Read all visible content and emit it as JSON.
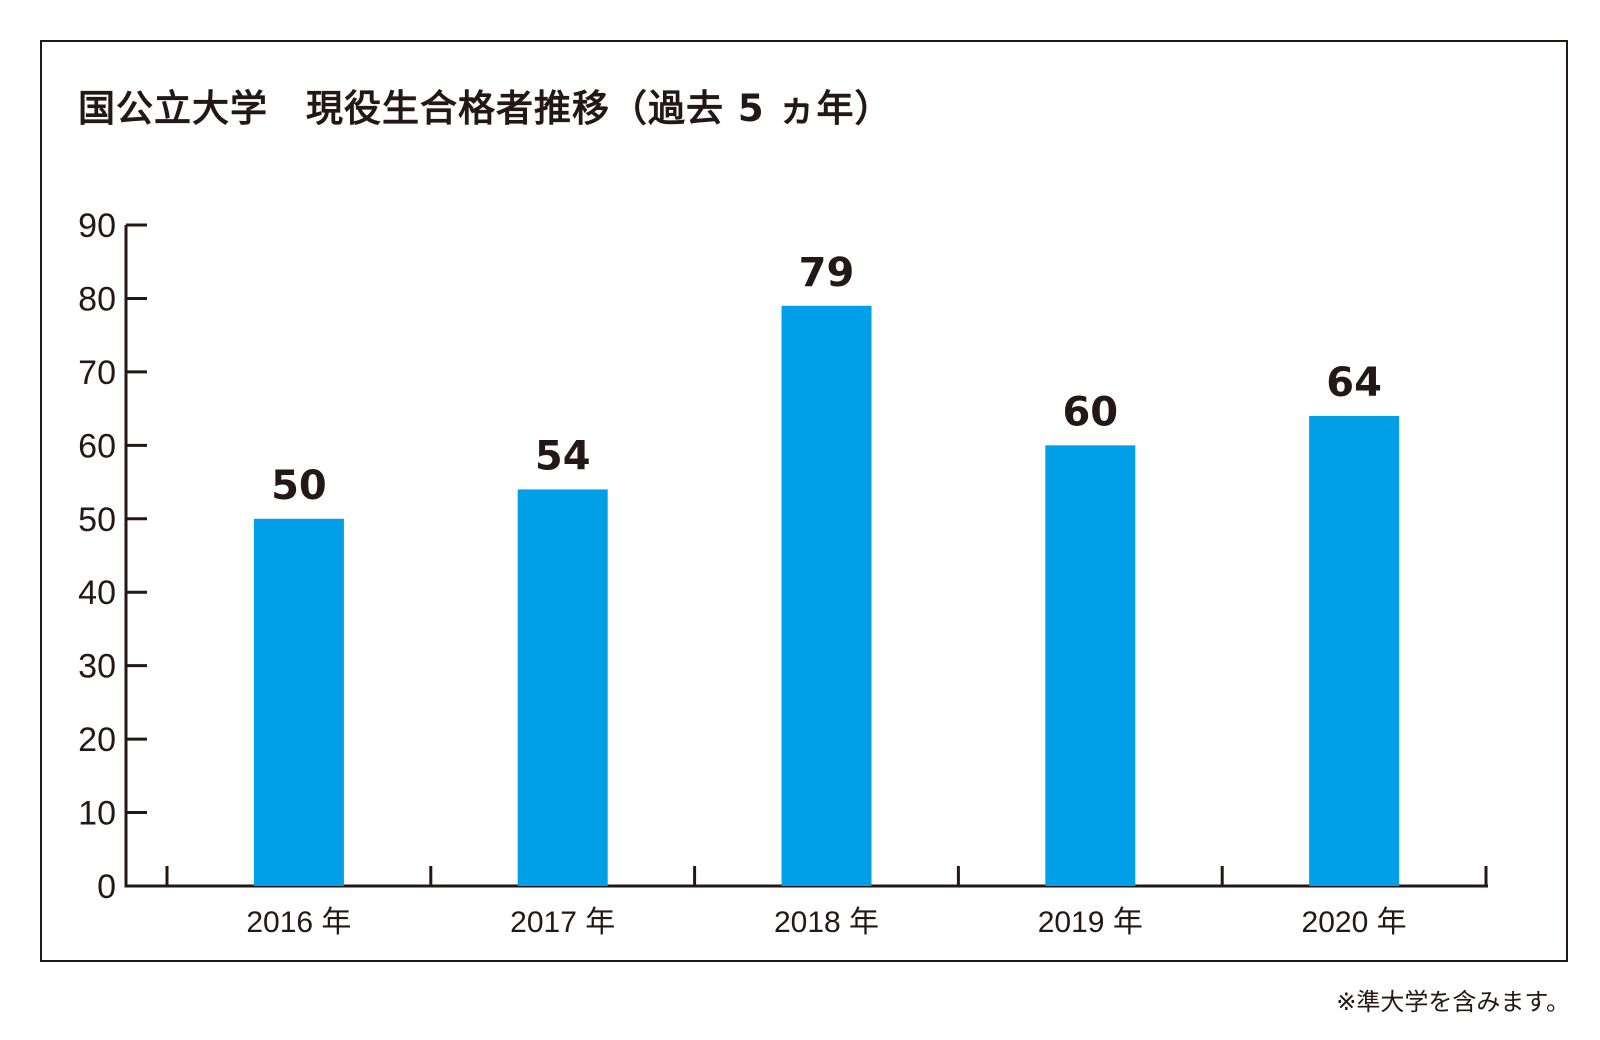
{
  "chart_data": {
    "type": "bar",
    "title": "国公立大学　現役生合格者推移（過去 5 ヵ年）",
    "categories": [
      "2016 年",
      "2017 年",
      "2018 年",
      "2019 年",
      "2020 年"
    ],
    "values": [
      50,
      54,
      79,
      60,
      64
    ],
    "data_labels": [
      "50",
      "54",
      "79",
      "60",
      "64"
    ],
    "xlabel": "",
    "ylabel": "",
    "ylim": [
      0,
      90
    ],
    "yticks": [
      "0",
      "10",
      "20",
      "30",
      "40",
      "50",
      "60",
      "70",
      "80",
      "90"
    ],
    "grid": false,
    "legend": "none",
    "bar_color": "#009fe8",
    "axis_color": "#231815",
    "note": "※準大学を含みます。"
  }
}
